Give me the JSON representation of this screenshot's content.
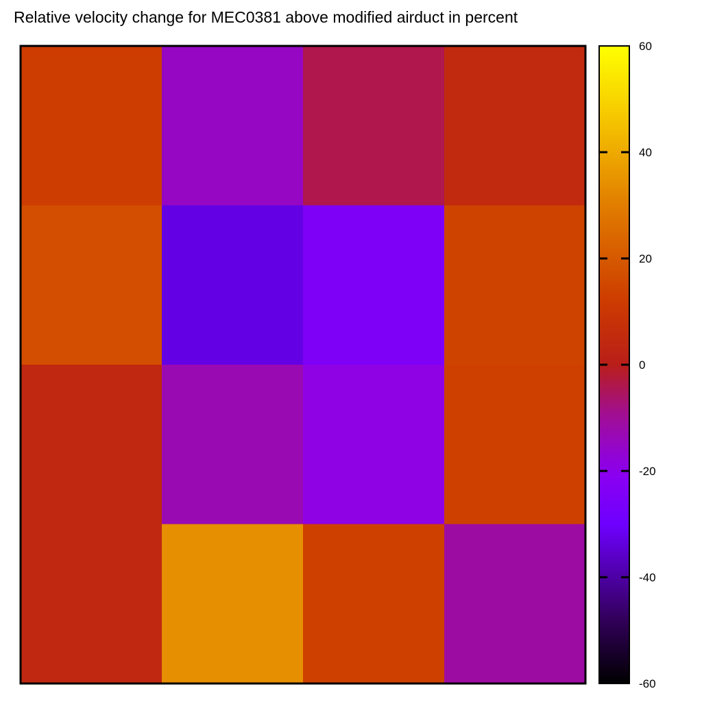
{
  "chart_data": {
    "type": "heatmap",
    "title": "Relative velocity change for MEC0381 above modified airduct in percent",
    "xlabel": "",
    "ylabel": "",
    "rows": 4,
    "cols": 4,
    "values": [
      [
        12,
        -15,
        -4,
        5
      ],
      [
        17,
        -33,
        -25,
        14
      ],
      [
        4,
        -13,
        -19,
        13
      ],
      [
        4,
        34,
        13,
        -11
      ]
    ],
    "colorbar": {
      "min": -60,
      "max": 60,
      "ticks": [
        60,
        40,
        20,
        0,
        -20,
        -40,
        -60
      ],
      "tick_labels": [
        "60",
        "40",
        "20",
        "0",
        "-20",
        "-40",
        "-60"
      ],
      "position": "right"
    },
    "grid": false
  }
}
